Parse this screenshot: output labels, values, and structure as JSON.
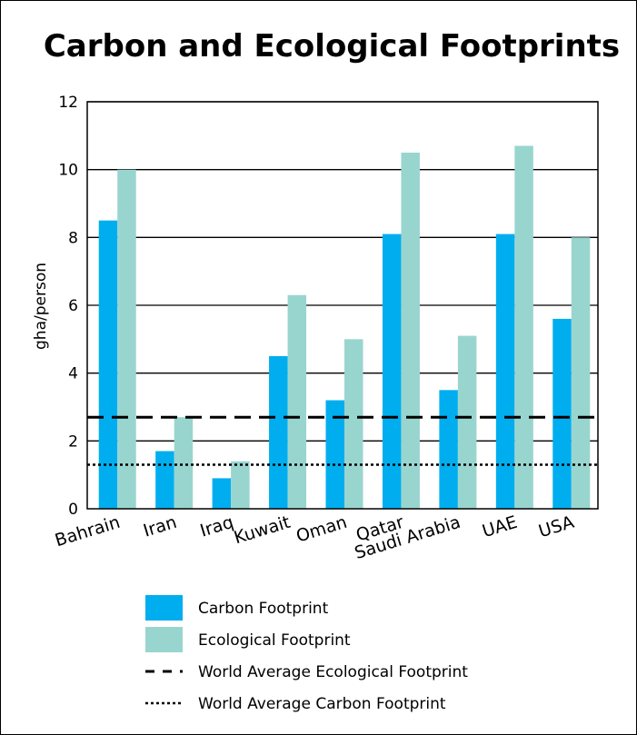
{
  "chart_data": {
    "type": "bar",
    "title": "Carbon and Ecological Footprints",
    "ylabel": "gha/person",
    "xlabel": "",
    "ylim": [
      0,
      12
    ],
    "yticks": [
      0,
      2,
      4,
      6,
      8,
      10,
      12
    ],
    "grid": "horizontal",
    "legend_position": "bottom",
    "categories": [
      "Bahrain",
      "Iran",
      "Iraq",
      "Kuwait",
      "Oman",
      "Qatar",
      "Saudi Arabia",
      "UAE",
      "USA"
    ],
    "series": [
      {
        "name": "Carbon Footprint",
        "color": "#00aeef",
        "values": [
          8.5,
          1.7,
          0.9,
          4.5,
          3.2,
          8.1,
          3.5,
          8.1,
          5.6
        ]
      },
      {
        "name": "Ecological Footprint",
        "color": "#99d5cf",
        "values": [
          10.0,
          2.7,
          1.4,
          6.3,
          5.0,
          10.5,
          5.1,
          10.7,
          8.0
        ]
      }
    ],
    "reference_lines": [
      {
        "name": "World Average Ecological Footprint",
        "value": 2.7,
        "style": "dashed"
      },
      {
        "name": "World Average Carbon Footprint",
        "value": 1.3,
        "style": "dotted"
      }
    ]
  }
}
